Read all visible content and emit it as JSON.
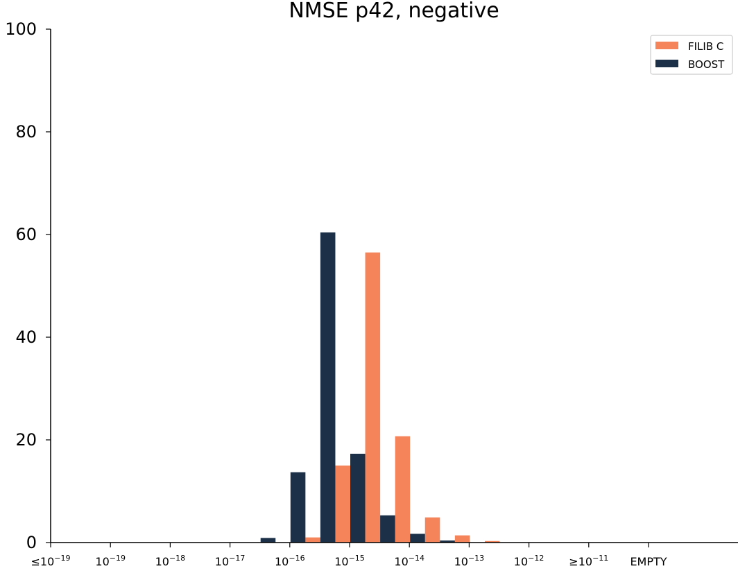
{
  "chart_data": {
    "type": "bar",
    "title": "NMSE p42, negative",
    "xlabel": "",
    "ylabel": "",
    "ylim": [
      0,
      100
    ],
    "yticks": [
      "0",
      "20",
      "40",
      "60",
      "80",
      "100"
    ],
    "ytick_values": [
      0,
      20,
      40,
      60,
      80,
      100
    ],
    "x_tick_labels": [
      {
        "prefix": "≤",
        "base": "10",
        "exp": "−19"
      },
      {
        "prefix": "",
        "base": "10",
        "exp": "−19"
      },
      {
        "prefix": "",
        "base": "10",
        "exp": "−18"
      },
      {
        "prefix": "",
        "base": "10",
        "exp": "−17"
      },
      {
        "prefix": "",
        "base": "10",
        "exp": "−16"
      },
      {
        "prefix": "",
        "base": "10",
        "exp": "−15"
      },
      {
        "prefix": "",
        "base": "10",
        "exp": "−14"
      },
      {
        "prefix": "",
        "base": "10",
        "exp": "−13"
      },
      {
        "prefix": "",
        "base": "10",
        "exp": "−12"
      },
      {
        "prefix": "≥",
        "base": "10",
        "exp": "−11"
      },
      {
        "prefix": "",
        "base": "EMPTY",
        "exp": ""
      }
    ],
    "bins_per_decade": 2,
    "legend_position": "top-right",
    "series": [
      {
        "name": "FILIB C",
        "color": "#f5845a",
        "values": [
          0,
          0,
          0,
          0,
          0,
          0,
          0,
          0,
          1.0,
          15.0,
          56.5,
          20.7,
          4.9,
          1.4,
          0.3,
          0,
          0,
          0,
          0,
          0
        ]
      },
      {
        "name": "BOOST",
        "color": "#1c3048",
        "values": [
          0,
          0,
          0,
          0,
          0,
          0,
          0,
          0.9,
          13.7,
          60.4,
          17.3,
          5.3,
          1.7,
          0.4,
          0,
          0,
          0,
          0,
          0,
          0
        ]
      }
    ]
  }
}
